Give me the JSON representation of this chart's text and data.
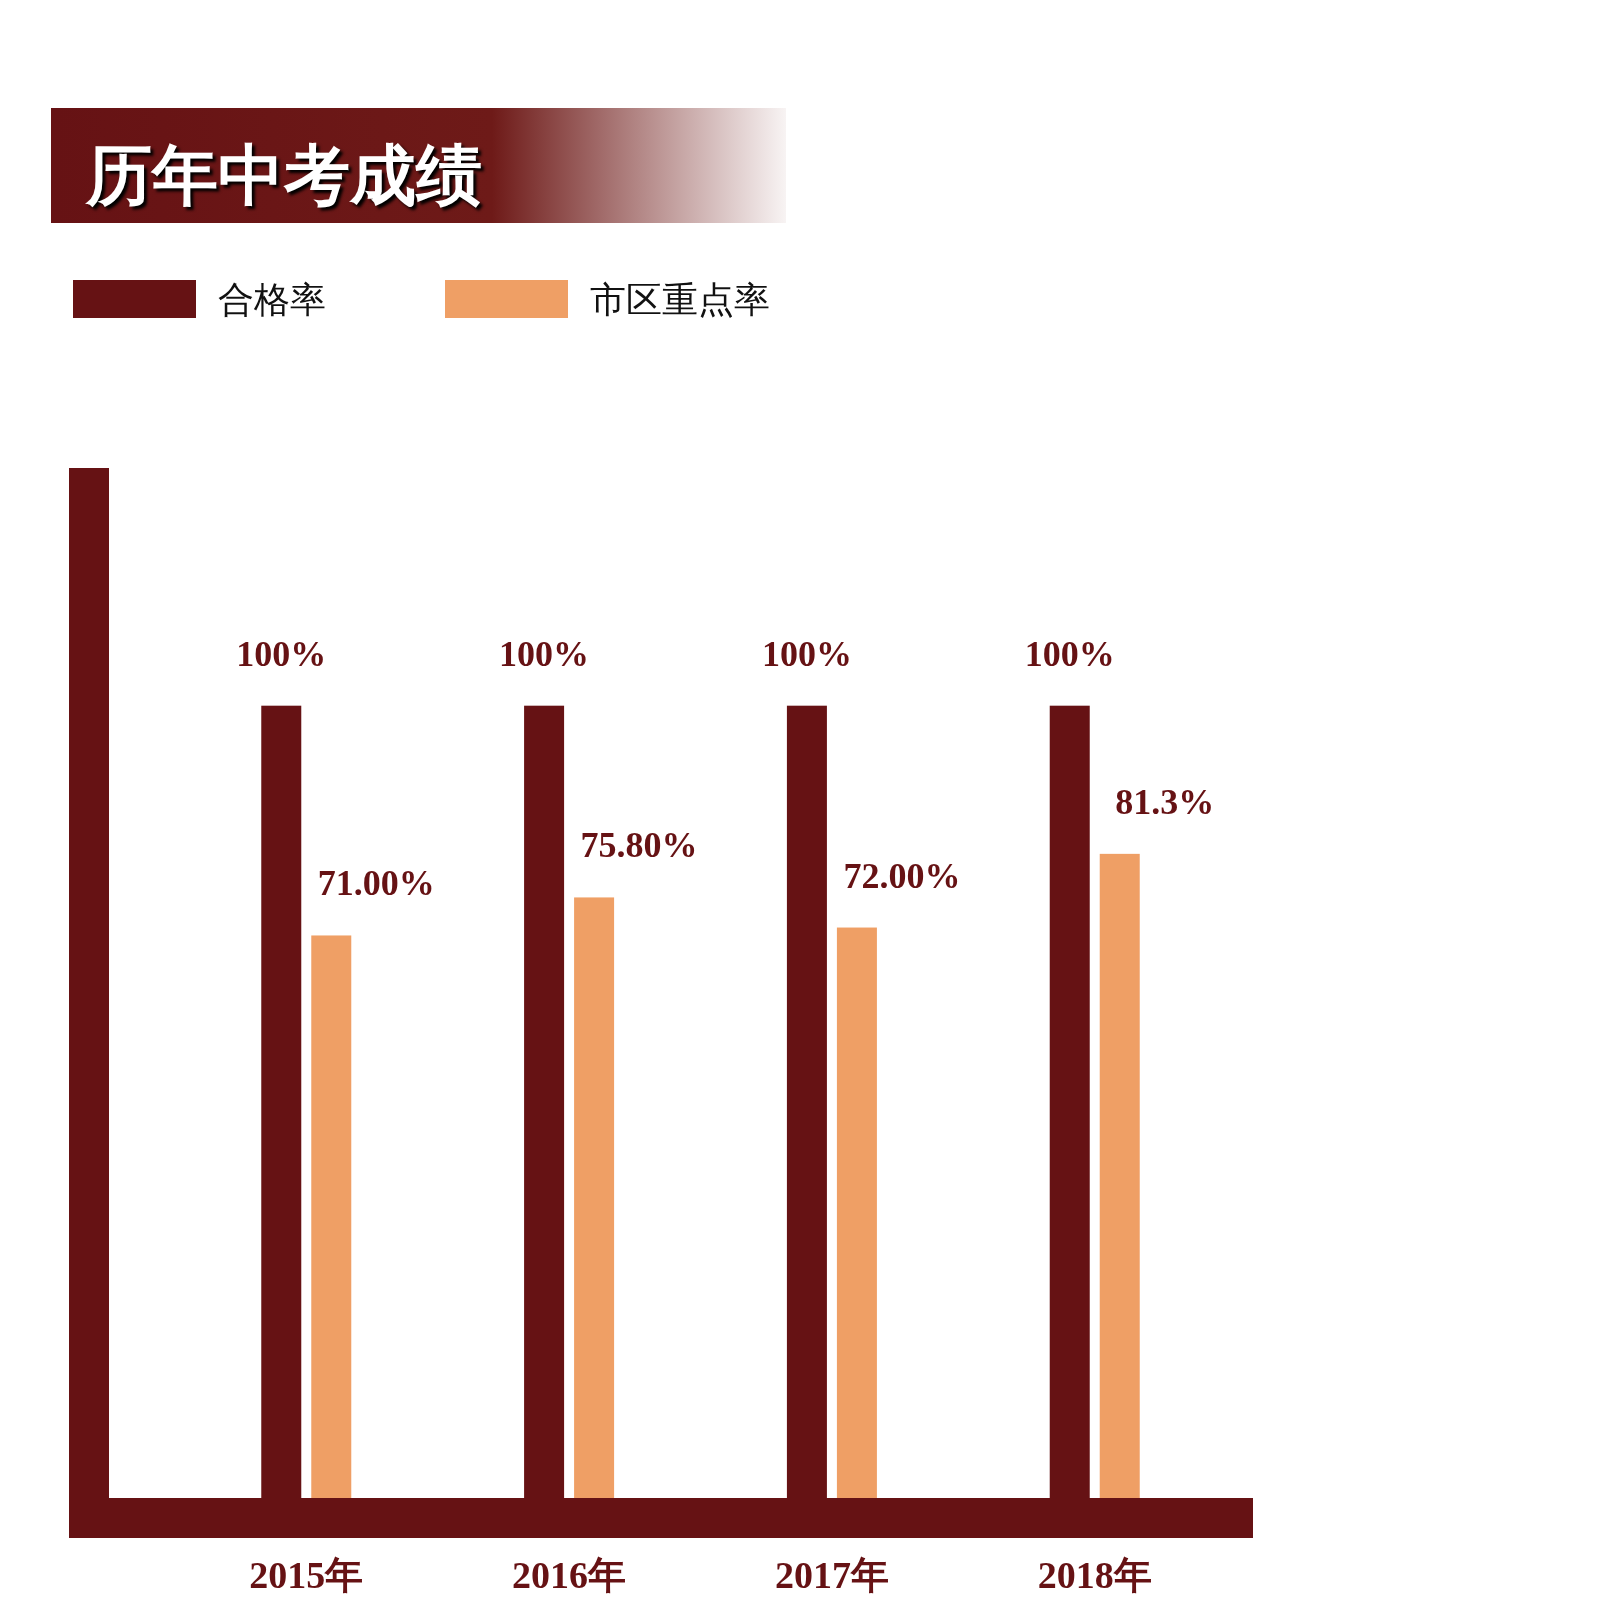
{
  "chart_data": {
    "type": "bar",
    "title": "历年中考成绩",
    "categories": [
      "2015年",
      "2016年",
      "2017年",
      "2018年"
    ],
    "legend": "top left",
    "series": [
      {
        "name": "合格率",
        "color": "#661214",
        "values": [
          100,
          100,
          100,
          100
        ],
        "value_labels": [
          "100%",
          "100%",
          "100%",
          "100%"
        ]
      },
      {
        "name": "市区重点率",
        "color": "#ef9f65",
        "values": [
          71.0,
          75.8,
          72.0,
          81.3
        ],
        "value_labels": [
          "71.00%",
          "75.80%",
          "72.00%",
          "81.3%"
        ]
      }
    ]
  }
}
